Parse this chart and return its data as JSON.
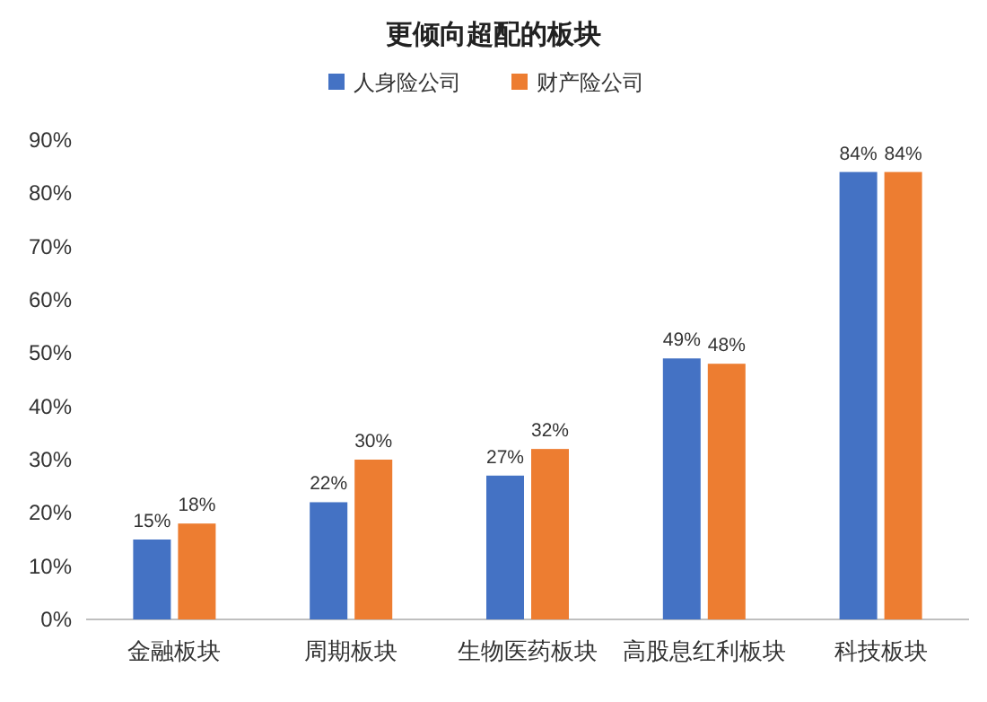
{
  "chart_data": {
    "type": "bar",
    "title": "更倾向超配的板块",
    "categories": [
      "金融板块",
      "周期板块",
      "生物医药板块",
      "高股息红利板块",
      "科技板块"
    ],
    "series": [
      {
        "name": "人身险公司",
        "color": "#4472c4",
        "values": [
          15,
          22,
          27,
          49,
          84
        ],
        "value_labels": [
          "15%",
          "22%",
          "27%",
          "49%",
          "84%"
        ]
      },
      {
        "name": "财产险公司",
        "color": "#ed7d31",
        "values": [
          18,
          30,
          32,
          48,
          84
        ],
        "value_labels": [
          "18%",
          "30%",
          "32%",
          "48%",
          "84%"
        ]
      }
    ],
    "ylim": [
      0,
      90
    ],
    "yticks": [
      {
        "value": 0,
        "label": "0%"
      },
      {
        "value": 10,
        "label": "10%"
      },
      {
        "value": 20,
        "label": "20%"
      },
      {
        "value": 30,
        "label": "30%"
      },
      {
        "value": 40,
        "label": "40%"
      },
      {
        "value": 50,
        "label": "50%"
      },
      {
        "value": 60,
        "label": "60%"
      },
      {
        "value": 70,
        "label": "70%"
      },
      {
        "value": 80,
        "label": "80%"
      },
      {
        "value": 90,
        "label": "90%"
      }
    ],
    "legend": "top",
    "grid": false
  }
}
